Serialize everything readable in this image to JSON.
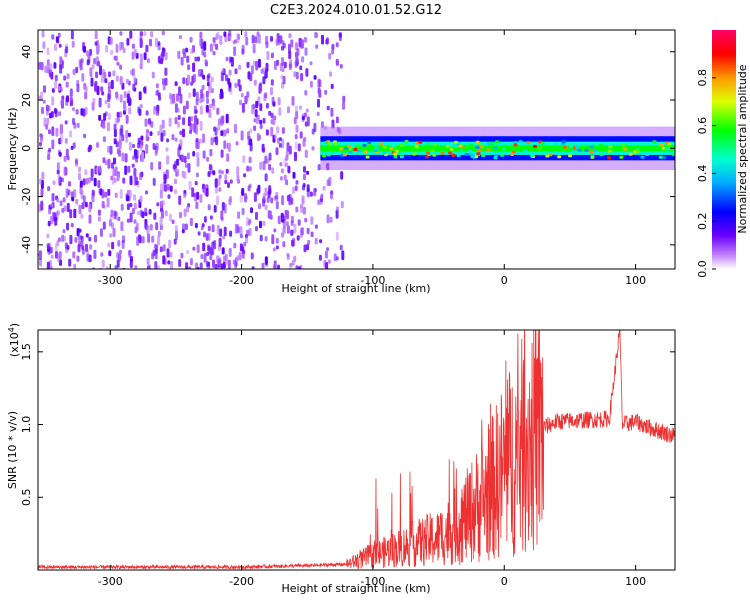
{
  "title": "C2E3.2024.010.01.52.G12",
  "chart_data": [
    {
      "type": "heatmap",
      "xlabel": "Height of straight line (km)",
      "ylabel": "Frequency (Hz)",
      "xlim": [
        -355,
        130
      ],
      "ylim": [
        -50,
        49
      ],
      "x_ticks": [
        -300,
        -200,
        -100,
        0,
        100
      ],
      "y_ticks": [
        -40,
        -20,
        0,
        20,
        40
      ],
      "colorbar": {
        "label": "Normalized spectral amplitude",
        "range": [
          0,
          1
        ],
        "ticks": [
          0.0,
          0.2,
          0.4,
          0.6,
          0.8
        ],
        "tick_labels": [
          "0.0",
          "0.2",
          "0.4",
          "0.6",
          "0.8"
        ]
      },
      "regions": [
        {
          "name": "broadband noise",
          "x_range": [
            -355,
            -118
          ],
          "freq_range": [
            -50,
            49
          ],
          "amplitude": 0.15
        },
        {
          "name": "signal band",
          "x_range": [
            -140,
            130
          ],
          "freq_center": 0,
          "freq_halfwidth": 5,
          "amplitude": 0.55
        }
      ]
    },
    {
      "type": "line",
      "xlabel": "Height of straight line (km)",
      "ylabel": "SNR (10 * v/v)",
      "y_multiplier": "(x10",
      "y_multiplier_exp": "4",
      "y_multiplier_close": ")",
      "xlim": [
        -355,
        130
      ],
      "ylim": [
        0,
        1.65
      ],
      "x_ticks": [
        -300,
        -200,
        -100,
        0,
        100
      ],
      "y_ticks": [
        0.5,
        1.0,
        1.5
      ],
      "y_tick_labels": [
        "0.5",
        "1.0",
        "1.5"
      ],
      "color": "#ee3030",
      "series": [
        {
          "x": [
            -355,
            -300,
            -250,
            -200,
            -150,
            -120,
            -100,
            -80,
            -60,
            -50,
            -40,
            -30,
            -20,
            -10,
            0,
            10,
            20,
            30,
            40,
            60,
            80,
            88,
            90,
            100,
            110,
            120,
            130
          ],
          "y": [
            0.02,
            0.02,
            0.02,
            0.02,
            0.03,
            0.04,
            0.1,
            0.15,
            0.2,
            0.22,
            0.28,
            0.35,
            0.45,
            0.55,
            0.7,
            0.8,
            0.92,
            0.98,
            1.02,
            1.03,
            1.04,
            1.65,
            1.0,
            1.02,
            0.98,
            0.95,
            0.92
          ]
        }
      ]
    }
  ]
}
